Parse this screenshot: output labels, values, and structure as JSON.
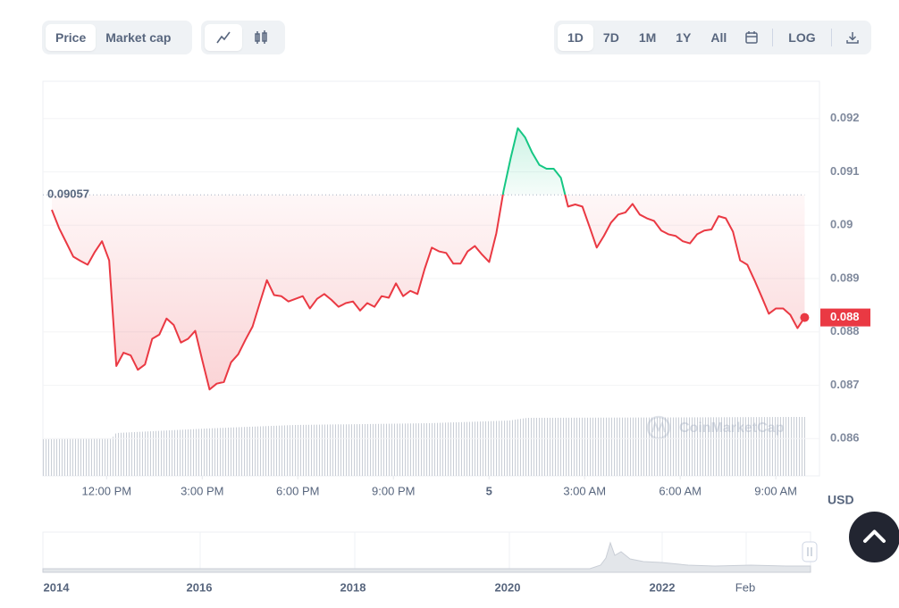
{
  "toolbar": {
    "chart_kind": [
      "Price",
      "Market cap"
    ],
    "ranges": [
      "1D",
      "7D",
      "1M",
      "1Y",
      "All"
    ],
    "scale": "LOG"
  },
  "chart_data": {
    "type": "line",
    "x": [
      10.28,
      10.505,
      10.73,
      10.955,
      11.18,
      11.405,
      11.63,
      11.855,
      12.08,
      12.305,
      12.53,
      12.755,
      12.98,
      13.205,
      13.43,
      13.655,
      13.88,
      14.105,
      14.33,
      14.555,
      14.78,
      15.005,
      15.23,
      15.455,
      15.68,
      15.905,
      16.13,
      16.355,
      16.58,
      16.805,
      17.03,
      17.255,
      17.48,
      17.705,
      17.93,
      18.155,
      18.38,
      18.605,
      18.83,
      19.055,
      19.28,
      19.505,
      19.73,
      19.955,
      20.18,
      20.405,
      20.63,
      20.855,
      21.08,
      21.305,
      21.53,
      21.755,
      21.98,
      22.205,
      22.43,
      22.655,
      22.88,
      23.105,
      23.33,
      23.555,
      23.78,
      24.005,
      24.23,
      24.455,
      24.68,
      24.905,
      25.13,
      25.355,
      25.58,
      25.805,
      26.03,
      26.255,
      26.48,
      26.705,
      26.93,
      27.155,
      27.38,
      27.605,
      27.83,
      28.055,
      28.28,
      28.505,
      28.73,
      28.955,
      29.18,
      29.405,
      29.63,
      29.855,
      30.08,
      30.305,
      30.53,
      30.755,
      30.98,
      31.205,
      31.43,
      31.655,
      31.88,
      32.105,
      32.33,
      32.555,
      32.78,
      33.005,
      33.23,
      33.455,
      33.68,
      33.905
    ],
    "values": [
      0.09029,
      0.08995,
      0.08968,
      0.08941,
      0.08933,
      0.08926,
      0.0895,
      0.0897,
      0.08934,
      0.08736,
      0.08761,
      0.08756,
      0.08729,
      0.08739,
      0.08787,
      0.08795,
      0.08825,
      0.08813,
      0.0878,
      0.08787,
      0.08802,
      0.08746,
      0.08692,
      0.08703,
      0.08706,
      0.08743,
      0.08758,
      0.08785,
      0.0881,
      0.08854,
      0.08897,
      0.08869,
      0.08867,
      0.08857,
      0.08862,
      0.08867,
      0.08844,
      0.08862,
      0.08871,
      0.0886,
      0.08847,
      0.08854,
      0.08857,
      0.0884,
      0.08854,
      0.08847,
      0.08867,
      0.08864,
      0.08891,
      0.08867,
      0.08877,
      0.08871,
      0.08918,
      0.08958,
      0.08951,
      0.08948,
      0.08928,
      0.08928,
      0.08951,
      0.08961,
      0.08945,
      0.08931,
      0.08985,
      0.09064,
      0.09126,
      0.09182,
      0.09165,
      0.09136,
      0.09113,
      0.09106,
      0.09106,
      0.09089,
      0.09035,
      0.09039,
      0.09035,
      0.08997,
      0.08958,
      0.0898,
      0.09005,
      0.0902,
      0.09024,
      0.0904,
      0.0902,
      0.09013,
      0.09008,
      0.0899,
      0.08983,
      0.0898,
      0.0897,
      0.08966,
      0.08983,
      0.0899,
      0.08992,
      0.09017,
      0.09013,
      0.08988,
      0.08934,
      0.08926,
      0.08897,
      0.08866,
      0.08834,
      0.08844,
      0.08844,
      0.08832,
      0.08807,
      0.08827
    ],
    "up_color": "#16c784",
    "down_color": "#ea3943",
    "open_price": 0.09057,
    "last_label": "0.088",
    "currency": "USD",
    "watermark": "CoinMarketCap",
    "xlim": [
      10,
      34.37
    ],
    "xticks": [
      {
        "value": 12,
        "label": "12:00 PM"
      },
      {
        "value": 15,
        "label": "3:00 PM"
      },
      {
        "value": 18,
        "label": "6:00 PM"
      },
      {
        "value": 21,
        "label": "9:00 PM"
      },
      {
        "value": 24,
        "label": "5"
      },
      {
        "value": 27,
        "label": "3:00 AM"
      },
      {
        "value": 30,
        "label": "6:00 AM"
      },
      {
        "value": 33,
        "label": "9:00 AM"
      }
    ],
    "ylim": [
      0.0853,
      0.0927
    ],
    "yticks": [
      0.086,
      0.087,
      0.088,
      0.089,
      0.09,
      0.091,
      0.092
    ],
    "grid": true
  },
  "navigator": {
    "labels": [
      "2014",
      "2016",
      "2018",
      "2020",
      "2022",
      "Feb"
    ]
  }
}
